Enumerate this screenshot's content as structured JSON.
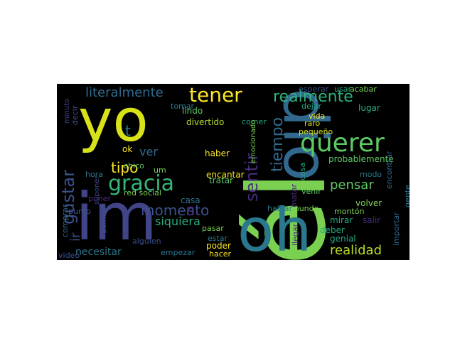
{
  "wordcloud": {
    "background": "#000000",
    "palette": [
      "#440154",
      "#414487",
      "#2a788e",
      "#22a884",
      "#7ad151",
      "#fde725"
    ],
    "words": [
      "él",
      "yo",
      "oh",
      "im",
      "dio",
      "querer",
      "tener",
      "gracia",
      "realmente",
      "literalmente",
      "gustar",
      "sentir",
      "tiempo",
      "tipo",
      "pensar",
      "momento",
      "realidad",
      "siquiera",
      "necesitar",
      "ir",
      "ver",
      "poder",
      "tratar",
      "hacer",
      "encantar",
      "probablemente",
      "lugar",
      "encontrar",
      "venir",
      "mirar",
      "comer",
      "casa",
      "genial",
      "volver",
      "salir",
      "deber",
      "estar",
      "pasar",
      "mundo",
      "modo",
      "hablar",
      "esperar",
      "usar",
      "acabar",
      "dejar",
      "vida",
      "raro",
      "pequeño",
      "importar",
      "gente",
      "haber",
      "divertido",
      "lindo",
      "chico",
      "tomar",
      "decir",
      "hora",
      "emocionado",
      "red social",
      "cosa",
      "alguien",
      "empezar",
      "video",
      "comprar",
      "punto",
      "poner",
      "llegar",
      "montón",
      "ok",
      "um",
      "permitir",
      "suponer",
      "minuto",
      "matar",
      "t",
      "s"
    ]
  }
}
